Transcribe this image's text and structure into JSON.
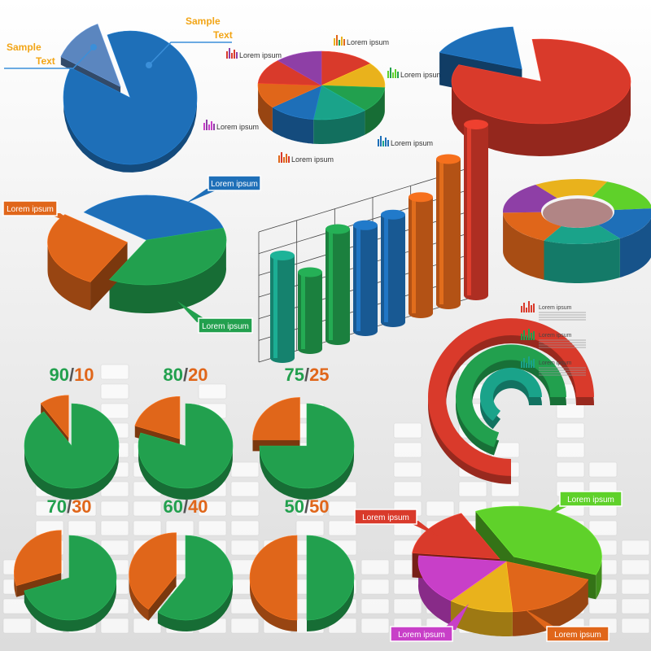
{
  "colors": {
    "red": "#d93a2b",
    "orange": "#e0661a",
    "yellow": "#e9b21c",
    "green": "#22a04e",
    "teal": "#1aa38a",
    "blue": "#1e6fb8",
    "purple": "#8e3fa6",
    "magenta": "#c83fc8",
    "lime": "#5fd12a",
    "callout_text": "#ffffff",
    "sample_text": "#f2a516"
  },
  "callouts": {
    "sample_left": "Sample\nText",
    "sample_right": "Sample\nText",
    "lorem": "Lorem ipsum"
  },
  "chart_data": [
    {
      "type": "pie",
      "label": "top-left 3D pie",
      "values": [
        88,
        12
      ],
      "colors": [
        "blue",
        "blue"
      ]
    },
    {
      "type": "pie",
      "label": "top-center 3D pie",
      "values": [
        14,
        12,
        12,
        14,
        12,
        12,
        12,
        12
      ],
      "colors": [
        "red",
        "yellow",
        "green",
        "teal",
        "blue",
        "orange",
        "red",
        "purple"
      ],
      "legend": [
        "Lorem ipsum",
        "Lorem ipsum",
        "Lorem ipsum",
        "Lorem ipsum",
        "Lorem ipsum",
        "Lorem ipsum"
      ]
    },
    {
      "type": "pie",
      "label": "top-right 3D pie",
      "values": [
        83,
        17
      ],
      "colors": [
        "red",
        "blue"
      ]
    },
    {
      "type": "pie",
      "label": "middle-left 3D pie",
      "values": [
        35,
        37,
        28
      ],
      "colors": [
        "blue",
        "green",
        "orange"
      ],
      "legend": [
        "Lorem ipsum",
        "Lorem ipsum",
        "Lorem ipsum"
      ]
    },
    {
      "type": "bar",
      "label": "3D cylinder bars",
      "values": [
        60,
        45,
        65,
        62,
        63,
        68,
        85,
        100
      ],
      "colors": [
        "teal",
        "green",
        "green",
        "blue",
        "blue",
        "orange",
        "orange",
        "red"
      ],
      "ylim": [
        0,
        100
      ]
    },
    {
      "type": "pie",
      "label": "ring 3D",
      "values": [
        16,
        17,
        17,
        17,
        17,
        16
      ],
      "colors": [
        "yellow",
        "lime",
        "blue",
        "teal",
        "orange",
        "purple"
      ]
    },
    {
      "type": "pie",
      "label": "spiral rings",
      "values": [
        75,
        70,
        65
      ],
      "colors": [
        "red",
        "green",
        "teal"
      ],
      "legend": [
        "Lorem ipsum",
        "Lorem ipsum",
        "Lorem ipsum"
      ]
    },
    {
      "type": "pie",
      "label": "split pies",
      "series": [
        {
          "name": "90/10",
          "values": [
            90,
            10
          ]
        },
        {
          "name": "80/20",
          "values": [
            80,
            20
          ]
        },
        {
          "name": "75/25",
          "values": [
            75,
            25
          ]
        },
        {
          "name": "70/30",
          "values": [
            70,
            30
          ]
        },
        {
          "name": "60/40",
          "values": [
            60,
            40
          ]
        },
        {
          "name": "50/50",
          "values": [
            50,
            50
          ]
        }
      ]
    },
    {
      "type": "pie",
      "label": "bottom-right 3D pie",
      "values": [
        38,
        18,
        12,
        16,
        16
      ],
      "colors": [
        "lime",
        "orange",
        "yellow",
        "magenta",
        "red"
      ],
      "legend": [
        "Lorem ipsum",
        "Lorem ipsum",
        "Lorem ipsum",
        "Lorem ipsum"
      ]
    }
  ]
}
